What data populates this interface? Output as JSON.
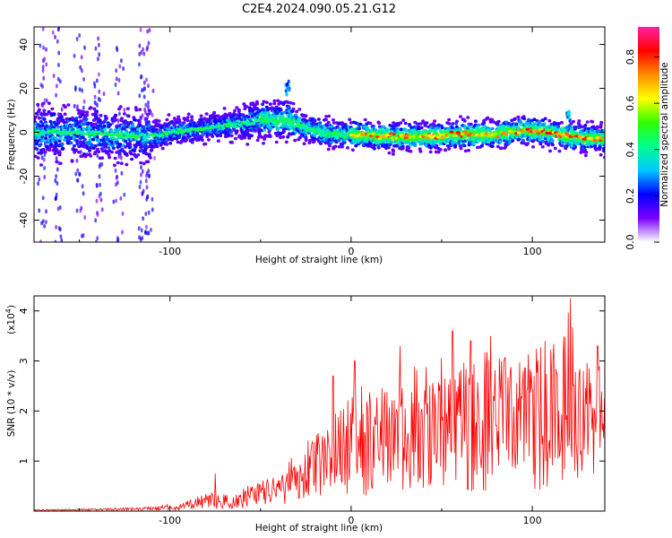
{
  "title": "C2E4.2024.090.05.21.G12",
  "chart_data": [
    {
      "type": "heatmap",
      "xlabel": "Height of straight line (km)",
      "ylabel": "Frequency (Hz)",
      "xlim": [
        -175,
        140
      ],
      "ylim": [
        -50,
        48
      ],
      "xticks": [
        -100,
        0,
        100
      ],
      "yticks": [
        -40,
        -20,
        0,
        20,
        40
      ],
      "colorbar": {
        "label": "Normalized spectral amplitude",
        "range": [
          0.0,
          0.93
        ],
        "ticks": [
          0.0,
          0.2,
          0.4,
          0.6,
          0.8
        ],
        "colors": [
          "#ffffff",
          "#7a00ff",
          "#0000ff",
          "#00c8ff",
          "#00ff90",
          "#30ff00",
          "#ffff00",
          "#ff8c00",
          "#ff0000",
          "#ff20a0"
        ]
      },
      "centerline": [
        [
          -175,
          0
        ],
        [
          -150,
          0
        ],
        [
          -120,
          -2
        ],
        [
          -110,
          -2
        ],
        [
          -100,
          0
        ],
        [
          -80,
          2
        ],
        [
          -60,
          4
        ],
        [
          -45,
          6
        ],
        [
          -35,
          5
        ],
        [
          -25,
          2
        ],
        [
          -10,
          -1
        ],
        [
          0,
          -1
        ],
        [
          20,
          -2
        ],
        [
          40,
          -2
        ],
        [
          60,
          -1
        ],
        [
          80,
          -1
        ],
        [
          95,
          1
        ],
        [
          110,
          0
        ],
        [
          120,
          -2
        ],
        [
          140,
          -3
        ]
      ],
      "features": [
        {
          "x": -35,
          "y": 20,
          "value": 0.3
        },
        {
          "x": 120,
          "y": 8,
          "value": 0.35
        }
      ]
    },
    {
      "type": "line",
      "xlabel": "Height of straight line (km)",
      "ylabel": "SNR (10 * v/v)",
      "yscale_label": "(x10",
      "yscale_exp": "4",
      "xlim": [
        -175,
        140
      ],
      "ylim": [
        0,
        4.3
      ],
      "xticks": [
        -100,
        0,
        100
      ],
      "yticks": [
        1,
        2,
        3,
        4
      ],
      "color": "#ff0000",
      "envelope": [
        [
          -175,
          0.02
        ],
        [
          -140,
          0.03
        ],
        [
          -110,
          0.05
        ],
        [
          -95,
          0.1
        ],
        [
          -85,
          0.25
        ],
        [
          -75,
          0.3
        ],
        [
          -65,
          0.25
        ],
        [
          -55,
          0.45
        ],
        [
          -45,
          0.55
        ],
        [
          -35,
          0.9
        ],
        [
          -25,
          1.1
        ],
        [
          -15,
          1.4
        ],
        [
          -5,
          1.7
        ],
        [
          5,
          2.0
        ],
        [
          20,
          2.2
        ],
        [
          40,
          2.4
        ],
        [
          60,
          2.5
        ],
        [
          80,
          2.6
        ],
        [
          100,
          2.7
        ],
        [
          115,
          2.9
        ],
        [
          120,
          3.2
        ],
        [
          130,
          2.6
        ],
        [
          140,
          2.4
        ]
      ],
      "peaks": [
        [
          -75,
          0.75
        ],
        [
          -10,
          2.7
        ],
        [
          2,
          3.0
        ],
        [
          27,
          3.3
        ],
        [
          56,
          3.6
        ],
        [
          66,
          3.4
        ],
        [
          77,
          3.5
        ],
        [
          107,
          3.4
        ],
        [
          121,
          4.25
        ],
        [
          136,
          3.3
        ]
      ]
    }
  ]
}
